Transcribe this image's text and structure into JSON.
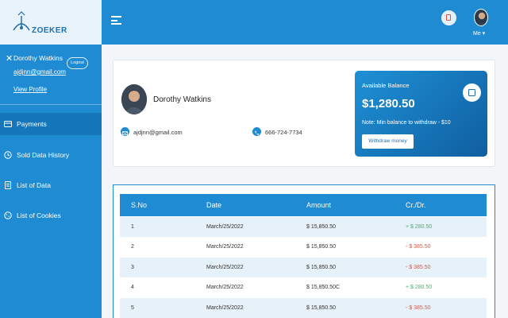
{
  "app": {
    "logo_text": "ZOEKER"
  },
  "sidebar": {
    "close_glyph": "✕",
    "user_name": "Dorothy Watkins",
    "user_email": "ajdjnn@gmail.com",
    "logout_label": "Logout",
    "view_profile_label": "View Profile",
    "items": [
      {
        "label": "Payments",
        "icon": "card-icon",
        "active": true
      },
      {
        "label": "Sold Data History",
        "icon": "clock-icon",
        "active": false
      },
      {
        "label": "List of Data",
        "icon": "document-icon",
        "active": false
      },
      {
        "label": "List of Cookies",
        "icon": "cookie-icon",
        "active": false
      }
    ]
  },
  "header": {
    "me_label": "Me ▾"
  },
  "profile": {
    "name": "Dorothy Watkins",
    "email": "ajdjnn@gmail.com",
    "phone": "666-724-7734"
  },
  "balance": {
    "label": "Available Balance",
    "amount": "$1,280.50",
    "note": "Note: Min balance to withdraw - $10",
    "withdraw_label": "Withdraw money"
  },
  "table": {
    "headers": [
      "S.No",
      "Date",
      "Amount",
      "Cr./Dr."
    ],
    "rows": [
      {
        "sno": "1",
        "date": "March/25/2022",
        "amount": "$ 15,850.50",
        "crdr": "+ $ 280.50",
        "type": "credit"
      },
      {
        "sno": "2",
        "date": "March/25/2022",
        "amount": "$ 15,850.50",
        "crdr": "- $ 385.50",
        "type": "debit"
      },
      {
        "sno": "3",
        "date": "March/25/2022",
        "amount": "$ 15,850.50",
        "crdr": "- $ 385.50",
        "type": "debit"
      },
      {
        "sno": "4",
        "date": "March/25/2022",
        "amount": "$ 15,850.50C",
        "crdr": "+ $ 280.50",
        "type": "credit"
      },
      {
        "sno": "5",
        "date": "March/25/2022",
        "amount": "$ 15,850.50",
        "crdr": "- $ 385.50",
        "type": "debit"
      }
    ]
  },
  "colors": {
    "primary": "#1e8bd3",
    "credit": "#3fb66a",
    "debit": "#e5533d"
  }
}
